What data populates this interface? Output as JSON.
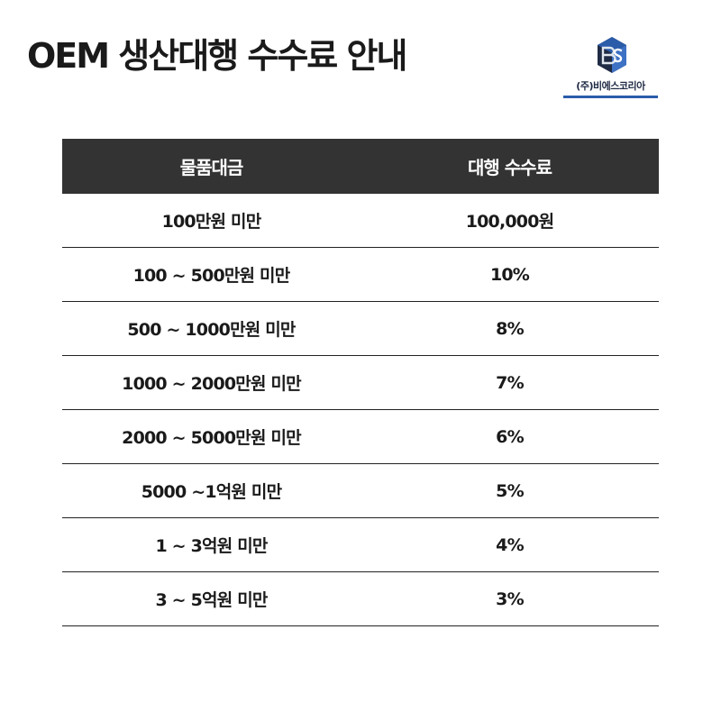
{
  "header": {
    "title": "OEM 생산대행 수수료 안내"
  },
  "logo": {
    "company_name": "(주)비에스코리아",
    "icon": "bs-cube-logo",
    "colors": {
      "dark": "#1f2a44",
      "blue": "#2a5caa",
      "light": "#dfe6ee"
    }
  },
  "table": {
    "headers": [
      "물품대금",
      "대행 수수료"
    ],
    "rows": [
      {
        "range": "100만원 미만",
        "fee": "100,000원"
      },
      {
        "range": "100 ~ 500만원 미만",
        "fee": "10%"
      },
      {
        "range": "500 ~ 1000만원 미만",
        "fee": "8%"
      },
      {
        "range": "1000 ~ 2000만원 미만",
        "fee": "7%"
      },
      {
        "range": "2000 ~ 5000만원 미만",
        "fee": "6%"
      },
      {
        "range": "5000 ~1억원 미만",
        "fee": "5%"
      },
      {
        "range": "1 ~ 3억원 미만",
        "fee": "4%"
      },
      {
        "range": "3 ~ 5억원 미만",
        "fee": "3%"
      }
    ],
    "colors": {
      "header_bg": "#333333",
      "header_text": "#ffffff",
      "row_border": "#222222"
    }
  }
}
